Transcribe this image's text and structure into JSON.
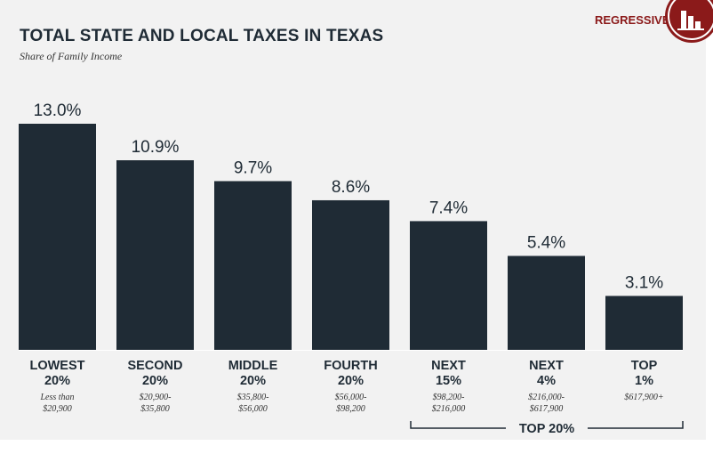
{
  "header": {
    "title": "TOTAL STATE AND LOCAL TAXES IN TEXAS",
    "subtitle": "Share of Family Income",
    "badge": "REGRESSIVE"
  },
  "colors": {
    "bar": "#1f2b35",
    "accent": "#8b1a1a",
    "text": "#1f2b35"
  },
  "chart_data": {
    "type": "bar",
    "title": "TOTAL STATE AND LOCAL TAXES IN TEXAS",
    "subtitle": "Share of Family Income",
    "xlabel": "",
    "ylabel": "",
    "ylim": [
      0,
      13
    ],
    "grid": false,
    "categories": [
      {
        "group": "LOWEST",
        "share": "20%",
        "range": [
          "Less than",
          "$20,900"
        ]
      },
      {
        "group": "SECOND",
        "share": "20%",
        "range": [
          "$20,900-",
          "$35,800"
        ]
      },
      {
        "group": "MIDDLE",
        "share": "20%",
        "range": [
          "$35,800-",
          "$56,000"
        ]
      },
      {
        "group": "FOURTH",
        "share": "20%",
        "range": [
          "$56,000-",
          "$98,200"
        ]
      },
      {
        "group": "NEXT",
        "share": "15%",
        "range": [
          "$98,200-",
          "$216,000"
        ]
      },
      {
        "group": "NEXT",
        "share": "4%",
        "range": [
          "$216,000-",
          "$617,900"
        ]
      },
      {
        "group": "TOP",
        "share": "1%",
        "range": [
          "$617,900+"
        ]
      }
    ],
    "values": [
      13.0,
      10.9,
      9.7,
      8.6,
      7.4,
      5.4,
      3.1
    ],
    "value_labels": [
      "13.0%",
      "10.9%",
      "9.7%",
      "8.6%",
      "7.4%",
      "5.4%",
      "3.1%"
    ],
    "bracket": {
      "label": "TOP 20%",
      "from": 4,
      "to": 6
    }
  }
}
